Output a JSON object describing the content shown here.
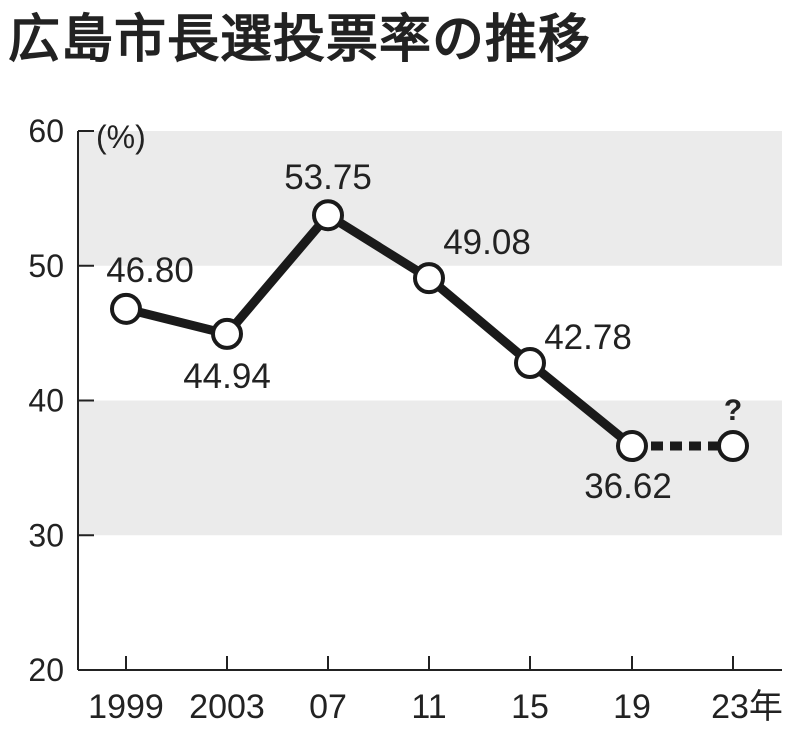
{
  "title": "広島市長選投票率の推移",
  "chart_data": {
    "type": "line",
    "title": "広島市長選投票率の推移",
    "ylabel": "(%)",
    "xlabel": "",
    "ylim": [
      20,
      60
    ],
    "yticks": [
      20,
      30,
      40,
      50,
      60
    ],
    "categories": [
      "1999",
      "2003",
      "07",
      "11",
      "15",
      "19",
      "23年"
    ],
    "series": [
      {
        "values": [
          46.8,
          44.94,
          53.75,
          49.08,
          42.78,
          36.62,
          null
        ]
      }
    ],
    "data_labels": [
      "46.80",
      "44.94",
      "53.75",
      "49.08",
      "42.78",
      "36.62",
      "?"
    ],
    "projection": {
      "from": "19",
      "to": "23年",
      "style": "dotted",
      "label": "?"
    },
    "bands": [
      [
        30,
        40
      ],
      [
        50,
        60
      ]
    ],
    "colors": {
      "line": "#1a1a1a",
      "band": "#ebebeb",
      "marker_fill": "#ffffff"
    }
  }
}
